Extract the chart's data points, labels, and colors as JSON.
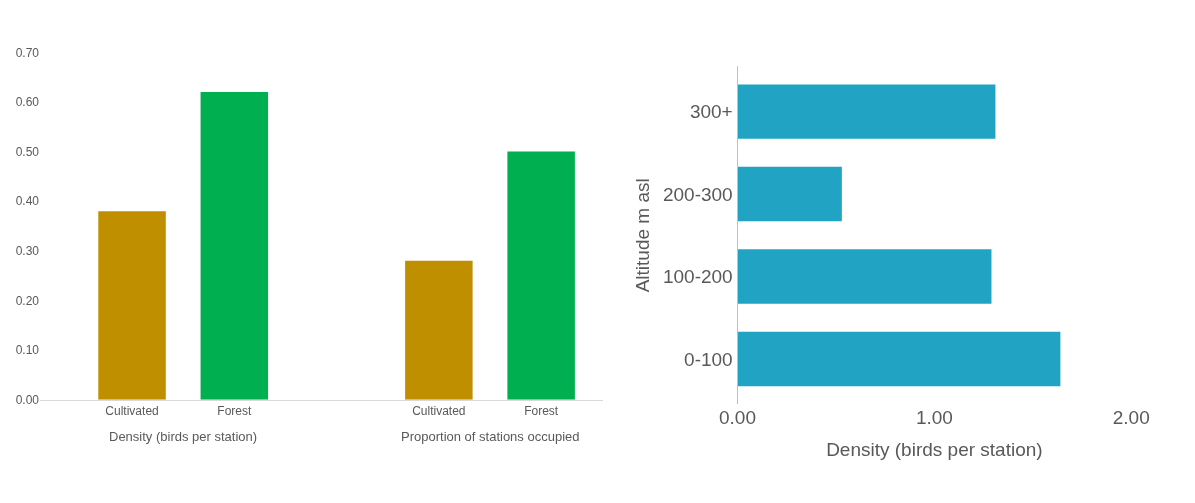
{
  "chart_data": [
    {
      "type": "bar",
      "categories": [
        "Cultivated",
        "Forest",
        "Cultivated",
        "Forest"
      ],
      "values": [
        0.38,
        0.62,
        0.28,
        0.5
      ],
      "colors": [
        "#bf8f00",
        "#00b050",
        "#bf8f00",
        "#00b050"
      ],
      "ylim": [
        0,
        0.7
      ],
      "yticks": [
        {
          "value": 0,
          "label": "0.00"
        },
        {
          "value": 0.1,
          "label": "0.10"
        },
        {
          "value": 0.2,
          "label": "0.20"
        },
        {
          "value": 0.3,
          "label": "0.30"
        },
        {
          "value": 0.4,
          "label": "0.40"
        },
        {
          "value": 0.5,
          "label": "0.50"
        },
        {
          "value": 0.6,
          "label": "0.60"
        },
        {
          "value": 0.7,
          "label": "0.70"
        }
      ],
      "annotations": [
        "Density (birds per station)",
        "Proportion of stations occupied"
      ]
    },
    {
      "type": "bar",
      "orientation": "horizontal",
      "categories": [
        "300+",
        "200-300",
        "100-200",
        "0-100"
      ],
      "values": [
        1.31,
        0.53,
        1.29,
        1.64
      ],
      "color": "#21a3c4",
      "xlim": [
        0,
        2
      ],
      "xticks": [
        {
          "value": 0,
          "label": "0.00"
        },
        {
          "value": 1,
          "label": "1.00"
        },
        {
          "value": 2,
          "label": "2.00"
        }
      ],
      "xlabel": "Density (birds per station)",
      "ylabel": "Altitude m asl"
    }
  ]
}
